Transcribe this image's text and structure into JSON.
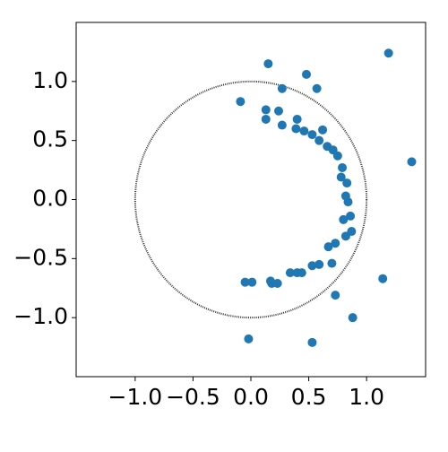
{
  "chart_data": {
    "type": "scatter",
    "xlim": [
      -1.51,
      1.51
    ],
    "ylim": [
      -1.5,
      1.5
    ],
    "xticks": [
      {
        "value": -1,
        "label": "−1.0"
      },
      {
        "value": -0.5,
        "label": "−0.5"
      },
      {
        "value": 0,
        "label": "0.0"
      },
      {
        "value": 0.5,
        "label": "0.5"
      },
      {
        "value": 1,
        "label": "1.0"
      }
    ],
    "yticks": [
      {
        "value": -1,
        "label": "−1.0"
      },
      {
        "value": -0.5,
        "label": "−0.5"
      },
      {
        "value": 0,
        "label": "0.0"
      },
      {
        "value": 0.5,
        "label": "0.5"
      },
      {
        "value": 1,
        "label": "1.0"
      }
    ],
    "reference_circle": {
      "center": [
        0,
        0
      ],
      "radius": 1,
      "color": "#333333"
    },
    "series": [
      {
        "color": "#1f77b4",
        "x": [
          0.15,
          1.19,
          0.48,
          0.57,
          0.27,
          -0.09,
          0.13,
          0.24,
          0.13,
          0.4,
          0.27,
          0.39,
          0.46,
          0.62,
          0.53,
          0.59,
          0.66,
          0.71,
          0.75,
          1.39,
          0.79,
          0.78,
          0.83,
          0.82,
          0.84,
          0.86,
          0.8,
          0.87,
          0.82,
          0.73,
          0.67,
          0.7,
          0.59,
          0.53,
          1.14,
          0.34,
          0.4,
          0.44,
          -0.05,
          0.01,
          0.17,
          0.18,
          0.23,
          0.73,
          0.88,
          -0.02,
          0.53
        ],
        "y": [
          1.15,
          1.24,
          1.06,
          0.94,
          0.94,
          0.83,
          0.76,
          0.75,
          0.68,
          0.68,
          0.63,
          0.6,
          0.58,
          0.59,
          0.55,
          0.5,
          0.45,
          0.42,
          0.37,
          0.32,
          0.27,
          0.19,
          0.14,
          0.03,
          -0.02,
          -0.14,
          -0.17,
          -0.27,
          -0.31,
          -0.37,
          -0.4,
          -0.54,
          -0.55,
          -0.56,
          -0.67,
          -0.62,
          -0.62,
          -0.62,
          -0.7,
          -0.7,
          -0.69,
          -0.71,
          -0.71,
          -0.81,
          -1.0,
          -1.18,
          -1.21
        ]
      }
    ]
  }
}
